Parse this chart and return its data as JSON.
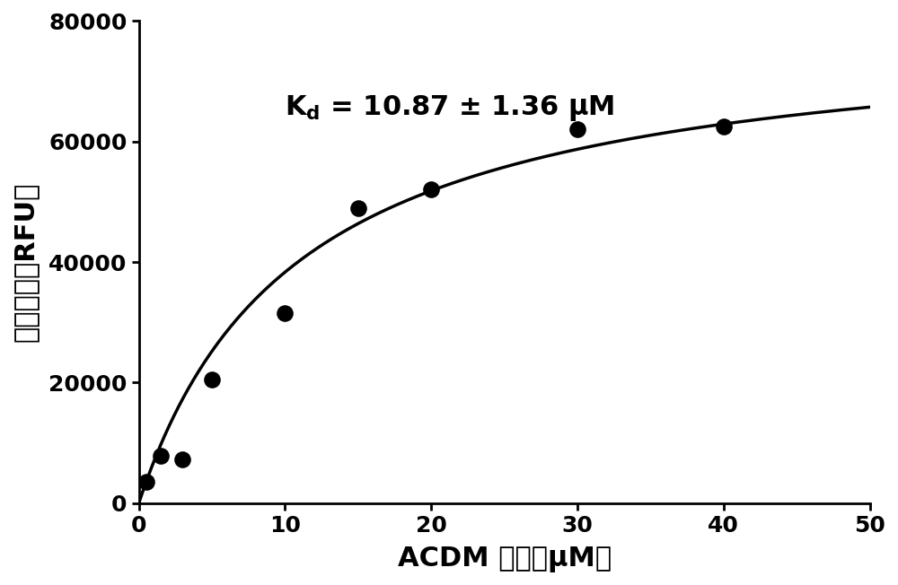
{
  "scatter_x": [
    0.5,
    1.5,
    3,
    5,
    10,
    15,
    20,
    30,
    40
  ],
  "scatter_y": [
    3500,
    7800,
    7200,
    20500,
    31500,
    49000,
    52000,
    62000,
    62500
  ],
  "Kd": 10.87,
  "Bmax": 80000,
  "annotation_text": "K",
  "annotation_sub": "d",
  "annotation_rest": " = 10.87 ± 1.36 μM",
  "xlabel": "ACDM 浓度（μM）",
  "ylabel": "荧光強度（RFU）",
  "xlim": [
    0,
    50
  ],
  "ylim": [
    0,
    80000
  ],
  "xticks": [
    0,
    10,
    20,
    30,
    40,
    50
  ],
  "yticks": [
    0,
    20000,
    40000,
    60000,
    80000
  ],
  "line_color": "#000000",
  "scatter_color": "#000000",
  "background_color": "#ffffff",
  "scatter_size": 100,
  "line_width": 2.5,
  "annotation_fontsize": 22,
  "axis_fontsize": 22,
  "tick_fontsize": 18
}
